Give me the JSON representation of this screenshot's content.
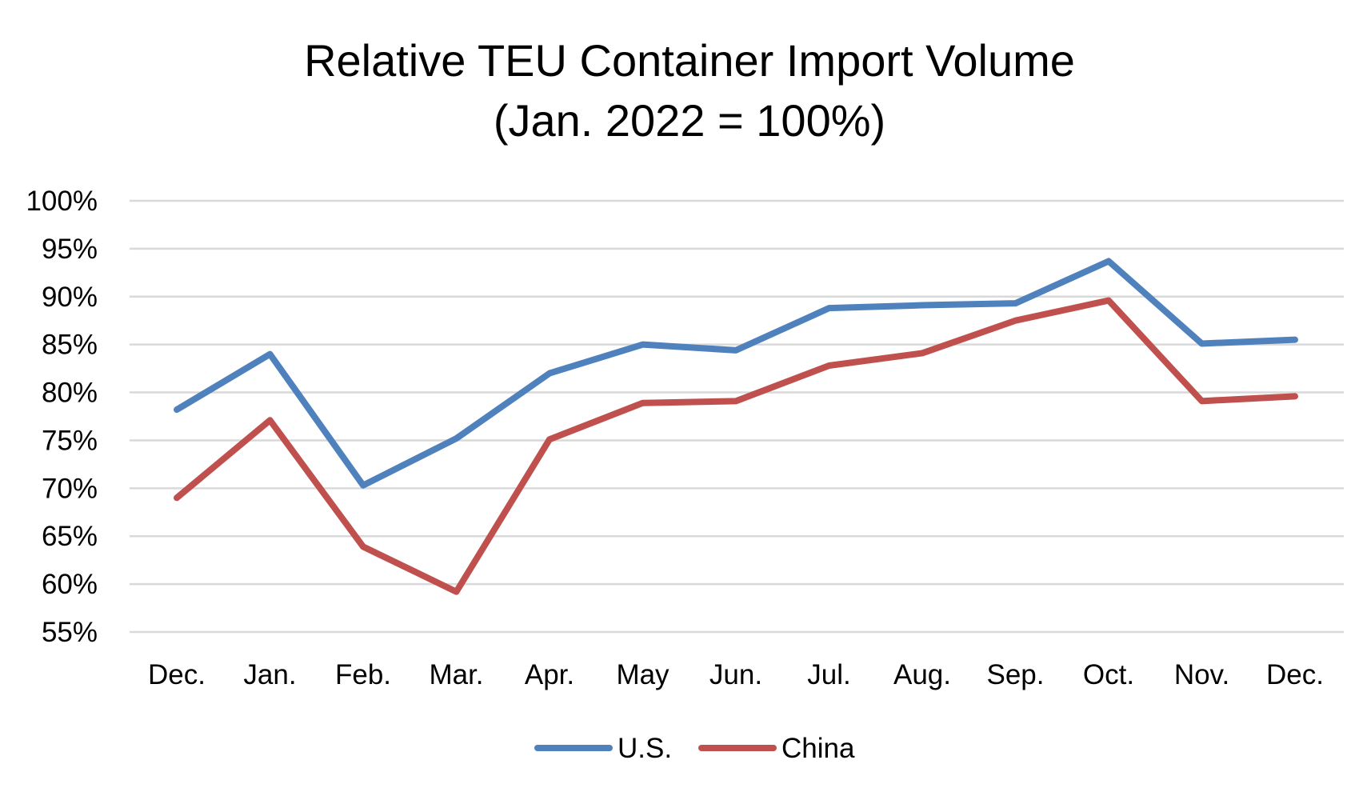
{
  "chart_data": {
    "type": "line",
    "title_line1": "Relative TEU Container Import  Volume",
    "title_line2": "(Jan. 2022 = 100%)",
    "xlabel": "",
    "ylabel": "",
    "categories": [
      "Dec.",
      "Jan.",
      "Feb.",
      "Mar.",
      "Apr.",
      "May",
      "Jun.",
      "Jul.",
      "Aug.",
      "Sep.",
      "Oct.",
      "Nov.",
      "Dec."
    ],
    "yticks": [
      55,
      60,
      65,
      70,
      75,
      80,
      85,
      90,
      95,
      100
    ],
    "ytick_labels": [
      "55%",
      "60%",
      "65%",
      "70%",
      "75%",
      "80%",
      "85%",
      "90%",
      "95%",
      "100%"
    ],
    "ylim": [
      55,
      100
    ],
    "grid": true,
    "legend_position": "bottom",
    "series": [
      {
        "name": "U.S.",
        "color": "#4F81BD",
        "values": [
          78.2,
          84.0,
          70.3,
          75.2,
          82.0,
          85.0,
          84.4,
          88.8,
          89.1,
          89.3,
          93.7,
          85.1,
          85.5
        ]
      },
      {
        "name": "China",
        "color": "#C0504D",
        "values": [
          69.0,
          77.1,
          63.9,
          59.2,
          75.1,
          78.9,
          79.1,
          82.8,
          84.1,
          87.5,
          89.6,
          79.1,
          79.6
        ]
      }
    ]
  }
}
